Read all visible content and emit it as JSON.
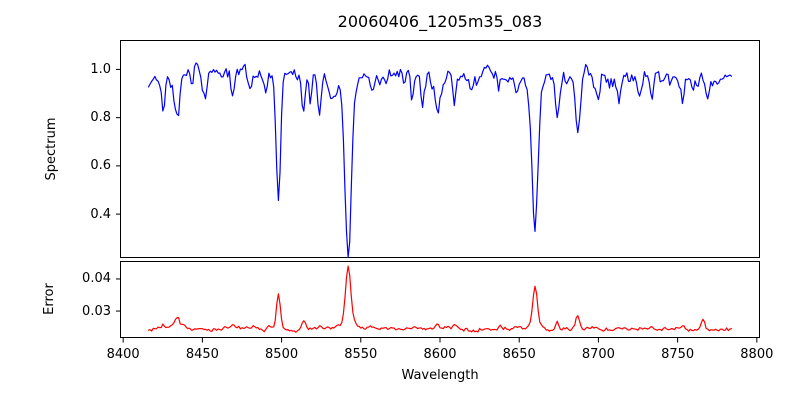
{
  "title": "20060406_1205m35_083",
  "colors": {
    "spectrum_line": "#0000ff",
    "error_line": "#ff0000",
    "axis": "#000000",
    "background": "#ffffff"
  },
  "x_axis": {
    "label": "Wavelength",
    "ticks": [
      8400,
      8450,
      8500,
      8550,
      8600,
      8650,
      8700,
      8750,
      8800
    ],
    "tick_labels": [
      "8400",
      "8450",
      "8500",
      "8550",
      "8600",
      "8650",
      "8700",
      "8750",
      "8800"
    ]
  },
  "chart_data": [
    {
      "type": "line",
      "panel": "spectrum",
      "ylabel": "Spectrum",
      "color": "#0000ff",
      "xlim": [
        8398,
        8802
      ],
      "ylim": [
        0.218,
        1.122
      ],
      "yticks": [
        1.0,
        0.8,
        0.6,
        0.4
      ],
      "ytick_labels": [
        "1.0",
        "0.8",
        "0.6",
        "0.4"
      ],
      "x_start": 8416,
      "x_end": 8784,
      "x_step": 1,
      "base": 0.972,
      "max_flux": 1.08,
      "noise": {
        "seed": 7,
        "ar": 0.55,
        "sigma_step": 0.018
      },
      "slow": [
        {
          "amp": 0.006,
          "period": 37
        },
        {
          "amp": 0.005,
          "period": 83
        }
      ],
      "absorption_lines": [
        {
          "center": 8415,
          "depth": 0.05,
          "sigma": 1.5,
          "min_flux": 0.92
        },
        {
          "center": 8425,
          "depth": 0.15,
          "sigma": 1.2,
          "min_flux": 0.82
        },
        {
          "center": 8434,
          "depth": 0.225,
          "sigma": 1.8,
          "min_flux": 0.75
        },
        {
          "center": 8443,
          "depth": 0.07,
          "sigma": 1.0,
          "min_flux": 0.9
        },
        {
          "center": 8452,
          "depth": 0.08,
          "sigma": 1.0,
          "min_flux": 0.89
        },
        {
          "center": 8462,
          "depth": 0.05,
          "sigma": 1.0,
          "min_flux": 0.92
        },
        {
          "center": 8469,
          "depth": 0.12,
          "sigma": 1.2,
          "min_flux": 0.85
        },
        {
          "center": 8480,
          "depth": 0.06,
          "sigma": 1.0,
          "min_flux": 0.91
        },
        {
          "center": 8490,
          "depth": 0.05,
          "sigma": 1.0,
          "min_flux": 0.92
        },
        {
          "center": 8498,
          "depth": 0.565,
          "sigma": 1.3,
          "min_flux": 0.41
        },
        {
          "center": 8514,
          "depth": 0.16,
          "sigma": 1.1,
          "min_flux": 0.81
        },
        {
          "center": 8518,
          "depth": 0.14,
          "sigma": 1.0,
          "min_flux": 0.83
        },
        {
          "center": 8524,
          "depth": 0.14,
          "sigma": 1.1,
          "min_flux": 0.83
        },
        {
          "center": 8531,
          "depth": 0.08,
          "sigma": 1.0,
          "min_flux": 0.89
        },
        {
          "center": 8542,
          "depth": 0.63,
          "sigma": 2.0,
          "wing_depth": 0.1,
          "wing_sigma": 6,
          "min_flux": 0.24
        },
        {
          "center": 8557,
          "depth": 0.06,
          "sigma": 1.0,
          "min_flux": 0.91
        },
        {
          "center": 8582,
          "depth": 0.08,
          "sigma": 1.0,
          "min_flux": 0.89
        },
        {
          "center": 8589,
          "depth": 0.1,
          "sigma": 1.2,
          "min_flux": 0.87
        },
        {
          "center": 8598,
          "depth": 0.15,
          "sigma": 1.5,
          "min_flux": 0.82
        },
        {
          "center": 8609,
          "depth": 0.13,
          "sigma": 1.2,
          "min_flux": 0.84
        },
        {
          "center": 8620,
          "depth": 0.06,
          "sigma": 1.0,
          "min_flux": 0.91
        },
        {
          "center": 8637,
          "depth": 0.08,
          "sigma": 1.0,
          "min_flux": 0.89
        },
        {
          "center": 8648,
          "depth": 0.09,
          "sigma": 1.2,
          "min_flux": 0.88
        },
        {
          "center": 8660,
          "depth": 0.57,
          "sigma": 1.8,
          "wing_depth": 0.08,
          "wing_sigma": 5,
          "min_flux": 0.32
        },
        {
          "center": 8674,
          "depth": 0.16,
          "sigma": 1.2,
          "min_flux": 0.81
        },
        {
          "center": 8687,
          "depth": 0.24,
          "sigma": 1.6,
          "min_flux": 0.73
        },
        {
          "center": 8700,
          "depth": 0.07,
          "sigma": 1.0,
          "min_flux": 0.9
        },
        {
          "center": 8713,
          "depth": 0.1,
          "sigma": 1.1,
          "min_flux": 0.87
        },
        {
          "center": 8726,
          "depth": 0.07,
          "sigma": 1.0,
          "min_flux": 0.9
        },
        {
          "center": 8734,
          "depth": 0.1,
          "sigma": 1.1,
          "min_flux": 0.86
        },
        {
          "center": 8753,
          "depth": 0.1,
          "sigma": 1.1,
          "min_flux": 0.86
        },
        {
          "center": 8769,
          "depth": 0.09,
          "sigma": 1.0,
          "min_flux": 0.87
        }
      ]
    },
    {
      "type": "line",
      "panel": "error",
      "ylabel": "Error",
      "xlabel": "Wavelength",
      "color": "#ff0000",
      "xlim": [
        8398,
        8802
      ],
      "ylim": [
        0.0216,
        0.0456
      ],
      "yticks": [
        0.04,
        0.03
      ],
      "ytick_labels": [
        "0.04",
        "0.03"
      ],
      "x_start": 8416,
      "x_end": 8784,
      "x_step": 1,
      "base": 0.0244,
      "noise": {
        "seed": 3,
        "ar": 0.5,
        "sigma_step": 0.00033
      },
      "slow": [
        {
          "amp": 0.0002,
          "period": 90
        }
      ],
      "error_peaks": [
        {
          "center": 8425,
          "depth": 0.0012,
          "sigma": 1.2,
          "peak_value": 0.0256
        },
        {
          "center": 8434,
          "depth": 0.0035,
          "sigma": 1.6,
          "peak_value": 0.0279
        },
        {
          "center": 8469,
          "depth": 0.001,
          "sigma": 1.0,
          "peak_value": 0.0254
        },
        {
          "center": 8498,
          "depth": 0.0108,
          "sigma": 1.2,
          "peak_value": 0.0352
        },
        {
          "center": 8514,
          "depth": 0.0022,
          "sigma": 1.0,
          "peak_value": 0.0266
        },
        {
          "center": 8524,
          "depth": 0.0012,
          "sigma": 1.0,
          "peak_value": 0.0256
        },
        {
          "center": 8542,
          "depth": 0.0185,
          "sigma": 1.6,
          "wing_depth": 0.0015,
          "wing_sigma": 5,
          "peak_value": 0.0444
        },
        {
          "center": 8598,
          "depth": 0.0012,
          "sigma": 1.2,
          "peak_value": 0.0256
        },
        {
          "center": 8609,
          "depth": 0.001,
          "sigma": 1.0,
          "peak_value": 0.0254
        },
        {
          "center": 8648,
          "depth": 0.0008,
          "sigma": 1.0,
          "peak_value": 0.0252
        },
        {
          "center": 8660,
          "depth": 0.013,
          "sigma": 1.5,
          "peak_value": 0.0374
        },
        {
          "center": 8674,
          "depth": 0.0024,
          "sigma": 1.0,
          "peak_value": 0.0268
        },
        {
          "center": 8687,
          "depth": 0.0045,
          "sigma": 1.4,
          "peak_value": 0.0289
        },
        {
          "center": 8713,
          "depth": 0.0008,
          "sigma": 1.0,
          "peak_value": 0.0252
        },
        {
          "center": 8734,
          "depth": 0.001,
          "sigma": 1.0,
          "peak_value": 0.0254
        },
        {
          "center": 8753,
          "depth": 0.0008,
          "sigma": 1.0,
          "peak_value": 0.0252
        },
        {
          "center": 8766,
          "depth": 0.003,
          "sigma": 1.2,
          "peak_value": 0.0274
        }
      ]
    }
  ]
}
